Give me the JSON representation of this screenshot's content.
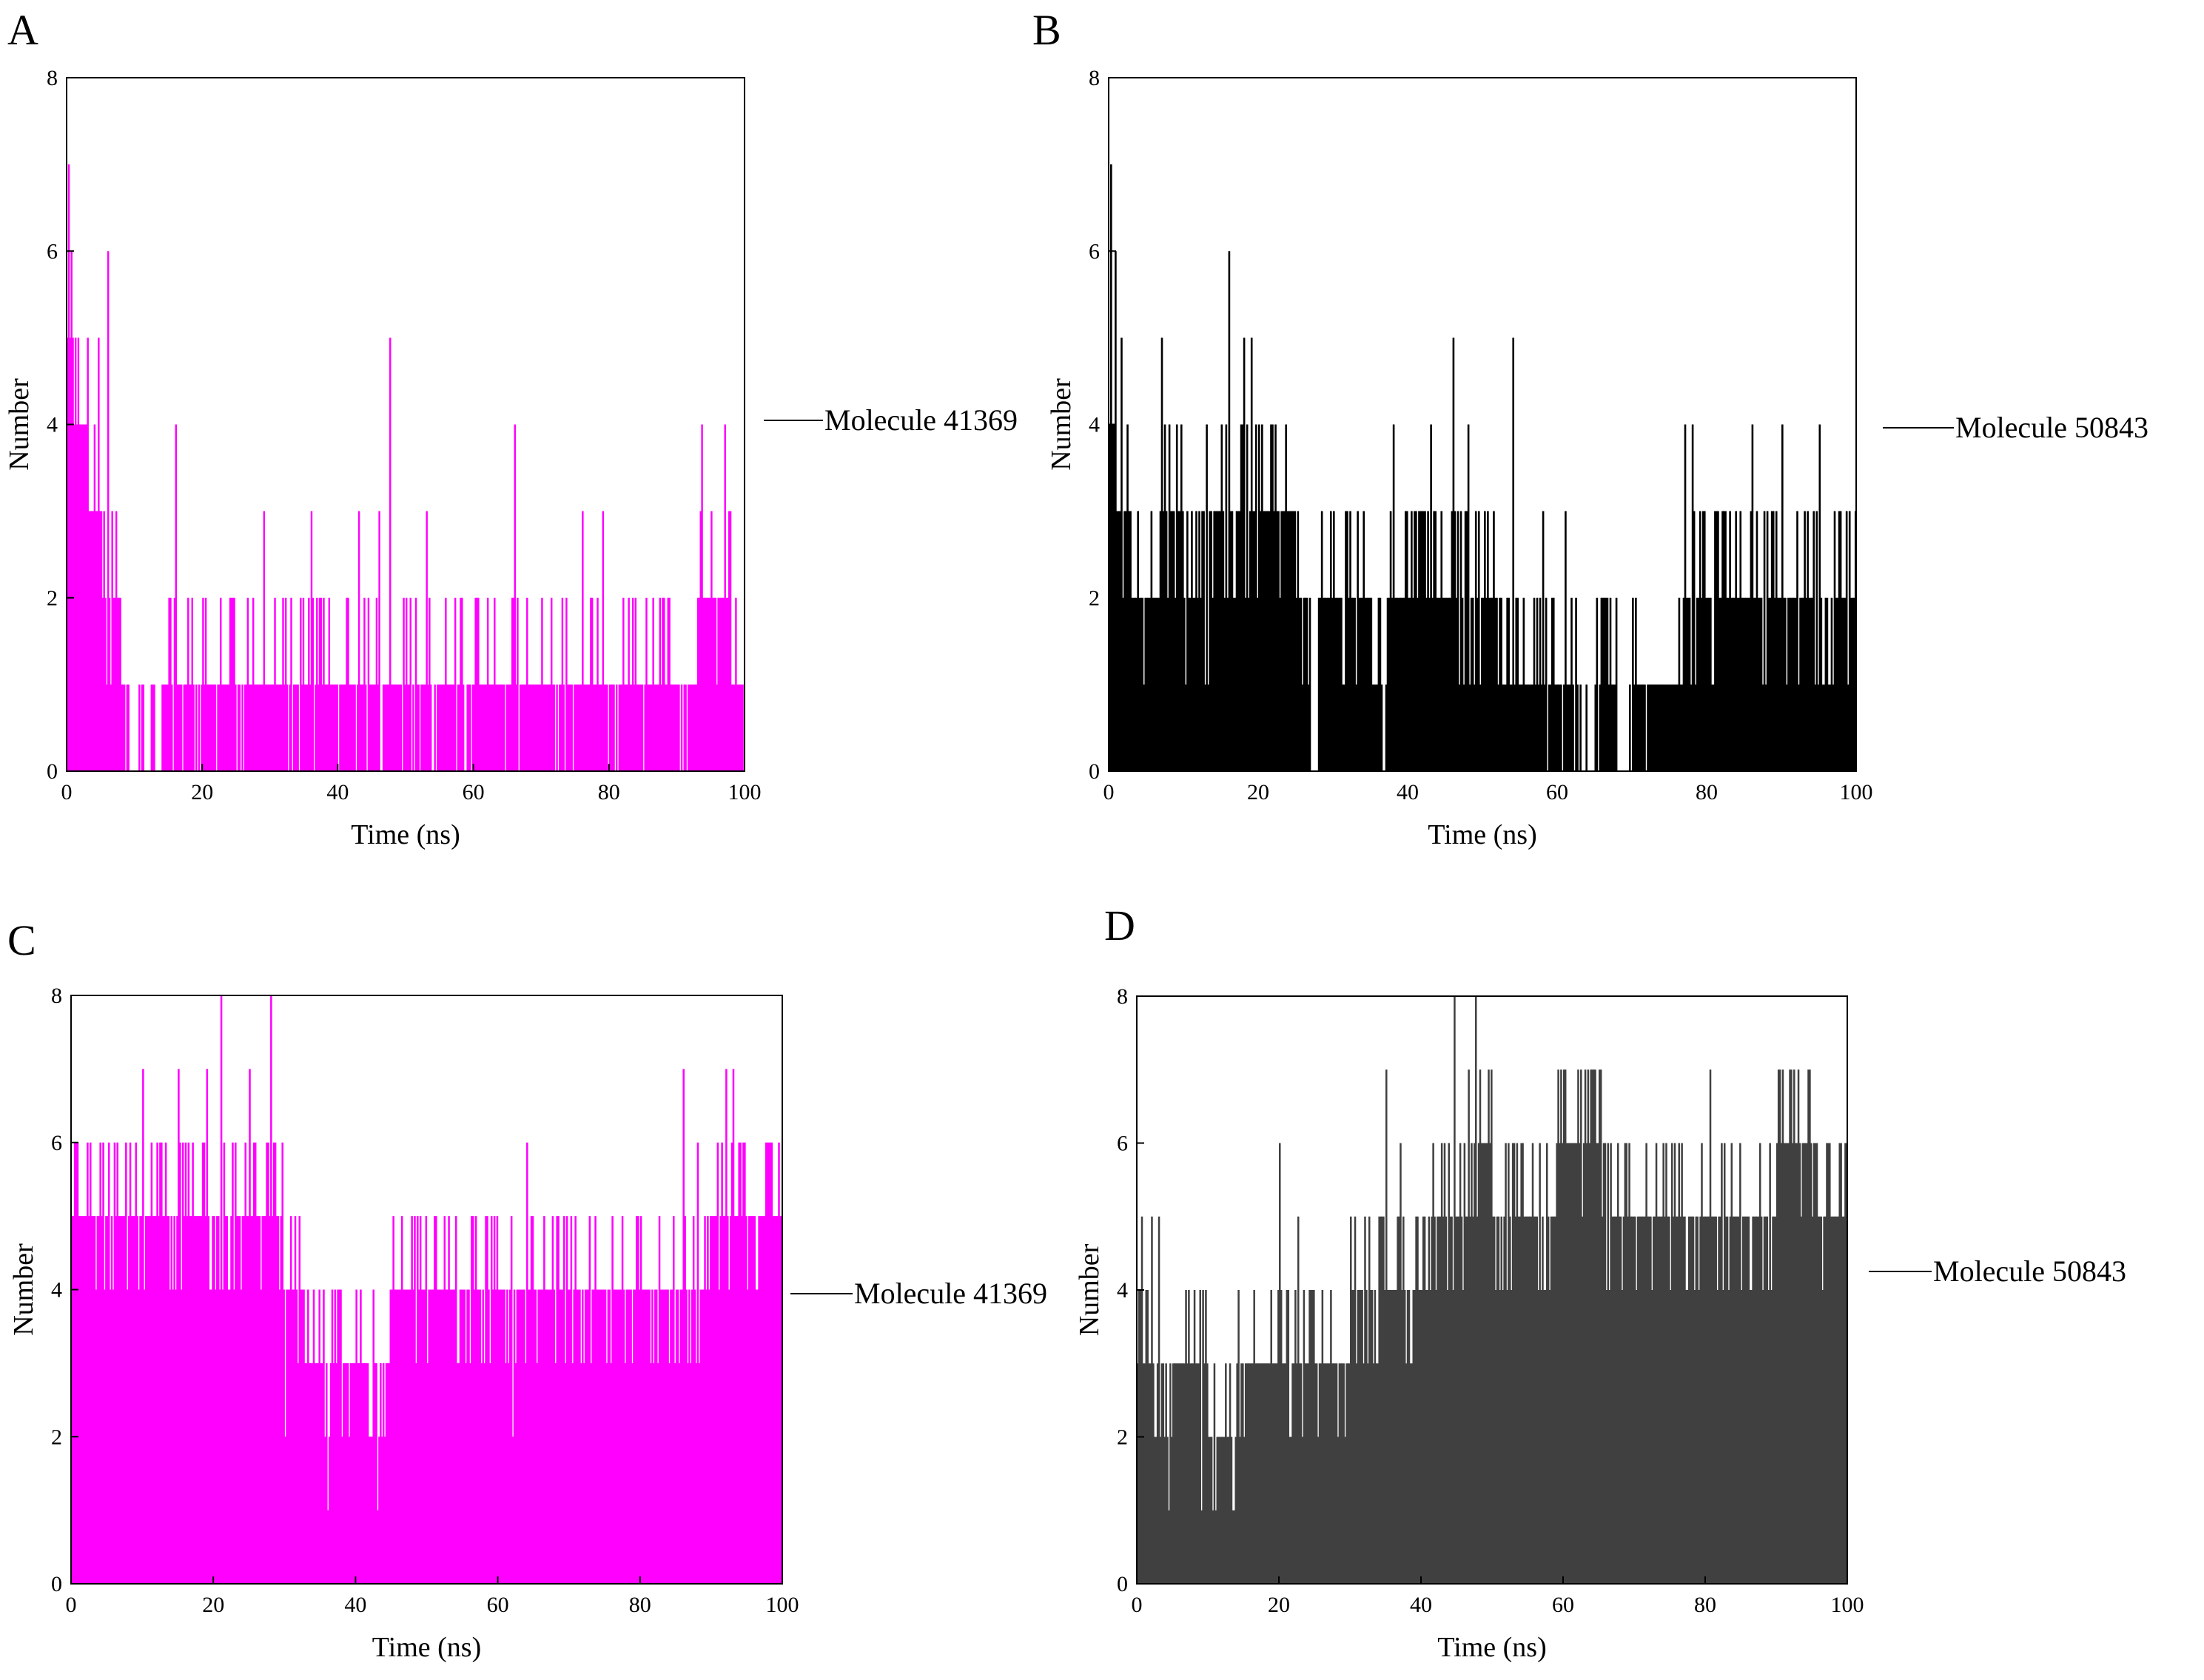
{
  "figure": {
    "panels": [
      "A",
      "B",
      "C",
      "D"
    ]
  },
  "chart_data": [
    {
      "panel": "A",
      "type": "bar",
      "series_label": "Molecule 41369",
      "xlabel": "Time (ns)",
      "ylabel": "Number",
      "xlim": [
        0,
        100
      ],
      "ylim": [
        0,
        8
      ],
      "xticks": [
        0,
        20,
        40,
        60,
        80,
        100
      ],
      "yticks": [
        0,
        2,
        4,
        6,
        8
      ],
      "color": "#ff00ff",
      "profile": [
        [
          0,
          5
        ],
        [
          1,
          4
        ],
        [
          3,
          3
        ],
        [
          5,
          2
        ],
        [
          7,
          2
        ],
        [
          8,
          1
        ],
        [
          9,
          0
        ],
        [
          14,
          1
        ],
        [
          24,
          1
        ],
        [
          28,
          1
        ],
        [
          40,
          1
        ],
        [
          45,
          1
        ],
        [
          55,
          1
        ],
        [
          60,
          1
        ],
        [
          75,
          1
        ],
        [
          85,
          1
        ],
        [
          92,
          1
        ],
        [
          93,
          2
        ],
        [
          96,
          2
        ],
        [
          98,
          1
        ],
        [
          100,
          1
        ]
      ],
      "noise": [
        0.35,
        0.3,
        0.35,
        0.4,
        0.3,
        0.3
      ],
      "spikes": [
        [
          0.2,
          7
        ],
        [
          0.6,
          6
        ],
        [
          1.5,
          5
        ],
        [
          3,
          5
        ],
        [
          4.5,
          5
        ],
        [
          6,
          6
        ],
        [
          16,
          4
        ],
        [
          47.5,
          5
        ],
        [
          29,
          3
        ],
        [
          36,
          3
        ],
        [
          43,
          3
        ],
        [
          46,
          3
        ],
        [
          66,
          4
        ],
        [
          76,
          3
        ],
        [
          79,
          3
        ],
        [
          93.5,
          4
        ],
        [
          97,
          4
        ],
        [
          95,
          3
        ],
        [
          20,
          2
        ],
        [
          33,
          2
        ],
        [
          50,
          2
        ],
        [
          53,
          3
        ],
        [
          58,
          2
        ],
        [
          62,
          2
        ],
        [
          70,
          2
        ],
        [
          73,
          2
        ],
        [
          82,
          2
        ],
        [
          88,
          2
        ]
      ],
      "seed": 11
    },
    {
      "panel": "B",
      "type": "bar",
      "series_label": "Molecule 50843",
      "xlabel": "Time (ns)",
      "ylabel": "Number",
      "xlim": [
        0,
        100
      ],
      "ylim": [
        0,
        8
      ],
      "xticks": [
        0,
        20,
        40,
        60,
        80,
        100
      ],
      "yticks": [
        0,
        2,
        4,
        6,
        8
      ],
      "color": "#000000",
      "profile": [
        [
          0,
          4
        ],
        [
          1,
          3
        ],
        [
          3,
          2
        ],
        [
          6,
          2
        ],
        [
          7,
          3
        ],
        [
          10,
          2
        ],
        [
          14,
          3
        ],
        [
          18,
          3
        ],
        [
          21,
          3
        ],
        [
          25,
          2
        ],
        [
          27,
          0
        ],
        [
          28,
          2
        ],
        [
          35,
          1
        ],
        [
          37,
          2
        ],
        [
          48,
          2
        ],
        [
          52,
          1
        ],
        [
          62,
          1
        ],
        [
          63,
          0
        ],
        [
          65,
          1
        ],
        [
          68,
          0
        ],
        [
          70,
          1
        ],
        [
          76,
          1
        ],
        [
          77,
          2
        ],
        [
          100,
          2
        ]
      ],
      "noise": [
        0.45,
        0.4,
        0.45,
        0.5,
        0.4,
        0.45
      ],
      "spikes": [
        [
          0.3,
          7
        ],
        [
          0.8,
          6
        ],
        [
          1.5,
          5
        ],
        [
          7,
          5
        ],
        [
          16,
          6
        ],
        [
          18,
          5
        ],
        [
          19,
          5
        ],
        [
          20,
          4
        ],
        [
          13,
          4
        ],
        [
          15,
          4
        ],
        [
          38,
          4
        ],
        [
          43,
          4
        ],
        [
          46,
          5
        ],
        [
          48,
          4
        ],
        [
          54,
          5
        ],
        [
          49,
          3
        ],
        [
          58,
          3
        ],
        [
          61,
          3
        ],
        [
          66,
          2
        ],
        [
          77,
          4
        ],
        [
          78,
          4
        ],
        [
          86,
          4
        ],
        [
          90,
          4
        ],
        [
          95,
          4
        ],
        [
          97,
          3
        ],
        [
          83,
          3
        ],
        [
          93,
          3
        ],
        [
          99,
          3
        ]
      ],
      "seed": 23
    },
    {
      "panel": "C",
      "type": "bar",
      "series_label": "Molecule 41369",
      "xlabel": "Time (ns)",
      "ylabel": "Number",
      "xlim": [
        0,
        100
      ],
      "ylim": [
        0,
        8
      ],
      "xticks": [
        0,
        20,
        40,
        60,
        80,
        100
      ],
      "yticks": [
        0,
        2,
        4,
        6,
        8
      ],
      "color": "#ff00ff",
      "profile": [
        [
          0,
          5
        ],
        [
          10,
          5
        ],
        [
          15,
          5
        ],
        [
          20,
          5
        ],
        [
          25,
          5
        ],
        [
          30,
          4
        ],
        [
          33,
          3
        ],
        [
          36,
          3
        ],
        [
          42,
          3
        ],
        [
          45,
          4
        ],
        [
          50,
          4
        ],
        [
          60,
          4
        ],
        [
          70,
          4
        ],
        [
          80,
          4
        ],
        [
          85,
          4
        ],
        [
          90,
          5
        ],
        [
          100,
          5
        ]
      ],
      "noise": [
        0.45,
        0.4,
        0.45,
        0.45,
        0.4,
        0.45
      ],
      "spikes": [
        [
          21,
          8
        ],
        [
          28,
          8
        ],
        [
          10,
          7
        ],
        [
          15,
          7
        ],
        [
          19,
          7
        ],
        [
          25,
          7
        ],
        [
          86,
          7
        ],
        [
          92,
          7
        ],
        [
          93,
          7
        ],
        [
          0.5,
          6
        ],
        [
          4,
          6
        ],
        [
          12,
          6
        ],
        [
          17,
          6
        ],
        [
          23,
          6
        ],
        [
          49,
          5
        ],
        [
          64,
          6
        ],
        [
          88,
          6
        ],
        [
          98,
          6
        ],
        [
          24,
          5
        ],
        [
          40,
          4
        ],
        [
          43,
          1
        ],
        [
          36,
          1
        ],
        [
          30,
          2
        ],
        [
          39,
          2
        ],
        [
          44,
          2
        ],
        [
          62,
          2
        ],
        [
          72,
          3
        ]
      ],
      "seed": 37
    },
    {
      "panel": "D",
      "type": "bar",
      "series_label": "Molecule 50843",
      "xlabel": "Time (ns)",
      "ylabel": "Number",
      "xlim": [
        0,
        100
      ],
      "ylim": [
        0,
        8
      ],
      "xticks": [
        0,
        20,
        40,
        60,
        80,
        100
      ],
      "yticks": [
        0,
        2,
        4,
        6,
        8
      ],
      "color": "#404040",
      "profile": [
        [
          0,
          3
        ],
        [
          2,
          2
        ],
        [
          5,
          3
        ],
        [
          10,
          2
        ],
        [
          13,
          2
        ],
        [
          14,
          3
        ],
        [
          18,
          3
        ],
        [
          22,
          3
        ],
        [
          29,
          3
        ],
        [
          30,
          4
        ],
        [
          40,
          5
        ],
        [
          44,
          5
        ],
        [
          47,
          6
        ],
        [
          50,
          5
        ],
        [
          58,
          5
        ],
        [
          59,
          6
        ],
        [
          66,
          5
        ],
        [
          70,
          5
        ],
        [
          75,
          5
        ],
        [
          80,
          5
        ],
        [
          85,
          5
        ],
        [
          90,
          6
        ],
        [
          96,
          5
        ],
        [
          100,
          5
        ]
      ],
      "noise": [
        0.45,
        0.4,
        0.5,
        0.45,
        0.4,
        0.5
      ],
      "spikes": [
        [
          44.5,
          8
        ],
        [
          47.5,
          8
        ],
        [
          46.5,
          7
        ],
        [
          35,
          7
        ],
        [
          59.5,
          7
        ],
        [
          63,
          7
        ],
        [
          65,
          7
        ],
        [
          80.5,
          7
        ],
        [
          20,
          6
        ],
        [
          22.5,
          5
        ],
        [
          0.5,
          5
        ],
        [
          2,
          5
        ],
        [
          3,
          5
        ],
        [
          9,
          1
        ],
        [
          11,
          1
        ],
        [
          13.5,
          1
        ],
        [
          37,
          6
        ],
        [
          54,
          6
        ],
        [
          73,
          6
        ],
        [
          97,
          6
        ]
      ],
      "seed": 53
    }
  ]
}
